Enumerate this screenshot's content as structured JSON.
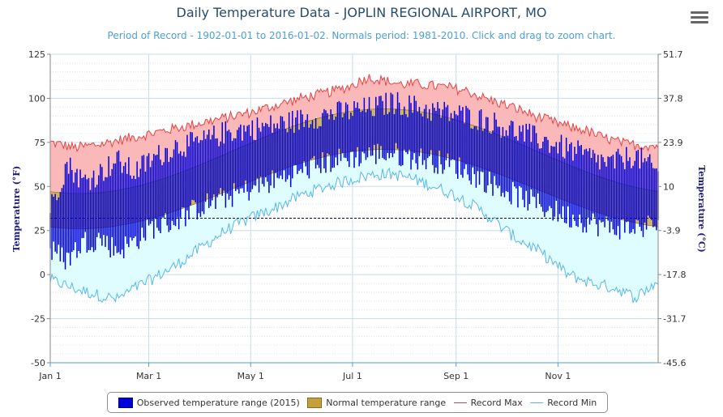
{
  "header": {
    "title": "Daily Temperature Data - JOPLIN REGIONAL AIRPORT, MO",
    "subtitle": "Period of Record - 1902-01-01 to 2016-01-02. Normals period: 1981-2010. Click and drag to zoom chart."
  },
  "menu": {
    "icon": "hamburger-menu-icon"
  },
  "colors": {
    "observed": "#0000d8",
    "normal_fill": "#c4a03c",
    "record_max_fill": "#fbb8b8",
    "record_max_line": "#e84040",
    "record_min_fill": "#dffcff",
    "record_min_line": "#55b8e8",
    "freezing_line": "#000066",
    "grid": "#c6dcef"
  },
  "chart_data": {
    "type": "area",
    "title": "Daily Temperature Data - JOPLIN REGIONAL AIRPORT, MO",
    "xlabel": "",
    "ylabel": "Temperature (°F)",
    "ylabel_right": "Temperature (°C)",
    "ylim": [
      -50,
      125
    ],
    "y_ticks": [
      -50,
      -25,
      0,
      25,
      50,
      75,
      100,
      125
    ],
    "y_ticks_right": [
      "-45.6",
      "-31.7",
      "-17.8",
      "-3.9",
      "10",
      "23.9",
      "37.8",
      "51.7"
    ],
    "x_tick_labels": [
      "Jan 1",
      "Mar 1",
      "May 1",
      "Jul 1",
      "Sep 1",
      "Nov 1"
    ],
    "x_tick_days": [
      0,
      59,
      120,
      181,
      243,
      304
    ],
    "days_in_year": 365,
    "freezing_line": 32,
    "grid": true,
    "legend_position": "bottom",
    "series": [
      {
        "name": "Record Max",
        "style": "line-fill",
        "anchors": [
          [
            0,
            75
          ],
          [
            15,
            72
          ],
          [
            30,
            74
          ],
          [
            45,
            77
          ],
          [
            60,
            80
          ],
          [
            75,
            83
          ],
          [
            90,
            86
          ],
          [
            105,
            89
          ],
          [
            120,
            92
          ],
          [
            135,
            96
          ],
          [
            150,
            100
          ],
          [
            165,
            103
          ],
          [
            180,
            107
          ],
          [
            190,
            112
          ],
          [
            200,
            110
          ],
          [
            210,
            108
          ],
          [
            220,
            108
          ],
          [
            230,
            107
          ],
          [
            240,
            106
          ],
          [
            250,
            104
          ],
          [
            260,
            100
          ],
          [
            270,
            97
          ],
          [
            280,
            94
          ],
          [
            290,
            90
          ],
          [
            300,
            87
          ],
          [
            310,
            84
          ],
          [
            320,
            82
          ],
          [
            330,
            78
          ],
          [
            345,
            74
          ],
          [
            364,
            73
          ]
        ]
      },
      {
        "name": "Record Min",
        "style": "line-fill",
        "anchors": [
          [
            0,
            -3
          ],
          [
            15,
            -8
          ],
          [
            30,
            -12
          ],
          [
            40,
            -14
          ],
          [
            50,
            -8
          ],
          [
            60,
            -3
          ],
          [
            75,
            5
          ],
          [
            90,
            15
          ],
          [
            105,
            25
          ],
          [
            120,
            32
          ],
          [
            135,
            38
          ],
          [
            150,
            45
          ],
          [
            165,
            50
          ],
          [
            180,
            54
          ],
          [
            195,
            57
          ],
          [
            205,
            57
          ],
          [
            215,
            55
          ],
          [
            230,
            50
          ],
          [
            245,
            44
          ],
          [
            260,
            35
          ],
          [
            270,
            27
          ],
          [
            280,
            20
          ],
          [
            290,
            15
          ],
          [
            300,
            8
          ],
          [
            310,
            0
          ],
          [
            325,
            -5
          ],
          [
            340,
            -8
          ],
          [
            350,
            -13
          ],
          [
            364,
            -4
          ]
        ]
      },
      {
        "name": "Normal temperature range",
        "normal_high": {
          "mean": 70,
          "amp": 24,
          "peak_day": 200
        },
        "normal_low": {
          "mean": 48.5,
          "amp": 22.5,
          "peak_day": 200
        }
      },
      {
        "name": "Observed temperature range (2015)",
        "style": "daily-bars",
        "anchors_high": [
          [
            0,
            35
          ],
          [
            10,
            60
          ],
          [
            20,
            50
          ],
          [
            30,
            55
          ],
          [
            40,
            62
          ],
          [
            50,
            55
          ],
          [
            60,
            62
          ],
          [
            75,
            70
          ],
          [
            90,
            72
          ],
          [
            105,
            78
          ],
          [
            120,
            80
          ],
          [
            135,
            82
          ],
          [
            150,
            85
          ],
          [
            165,
            88
          ],
          [
            180,
            90
          ],
          [
            195,
            92
          ],
          [
            205,
            95
          ],
          [
            215,
            93
          ],
          [
            230,
            90
          ],
          [
            245,
            88
          ],
          [
            260,
            85
          ],
          [
            275,
            80
          ],
          [
            290,
            75
          ],
          [
            305,
            70
          ],
          [
            320,
            65
          ],
          [
            335,
            60
          ],
          [
            350,
            65
          ],
          [
            364,
            55
          ]
        ],
        "anchors_low": [
          [
            0,
            15
          ],
          [
            10,
            10
          ],
          [
            20,
            20
          ],
          [
            30,
            22
          ],
          [
            40,
            15
          ],
          [
            50,
            20
          ],
          [
            60,
            28
          ],
          [
            75,
            32
          ],
          [
            90,
            40
          ],
          [
            105,
            45
          ],
          [
            120,
            50
          ],
          [
            135,
            55
          ],
          [
            150,
            60
          ],
          [
            165,
            65
          ],
          [
            180,
            68
          ],
          [
            195,
            70
          ],
          [
            205,
            70
          ],
          [
            215,
            68
          ],
          [
            230,
            66
          ],
          [
            245,
            62
          ],
          [
            260,
            55
          ],
          [
            275,
            48
          ],
          [
            290,
            42
          ],
          [
            305,
            36
          ],
          [
            320,
            32
          ],
          [
            335,
            28
          ],
          [
            350,
            28
          ],
          [
            364,
            30
          ]
        ]
      }
    ]
  },
  "legend": {
    "items": [
      {
        "label": "Observed temperature range (2015)",
        "icon": "blue-swatch"
      },
      {
        "label": "Normal temperature range",
        "icon": "gold-swatch"
      },
      {
        "label": "Record Max",
        "icon": "red-line"
      },
      {
        "label": "Record Min",
        "icon": "light-blue-line"
      }
    ]
  }
}
